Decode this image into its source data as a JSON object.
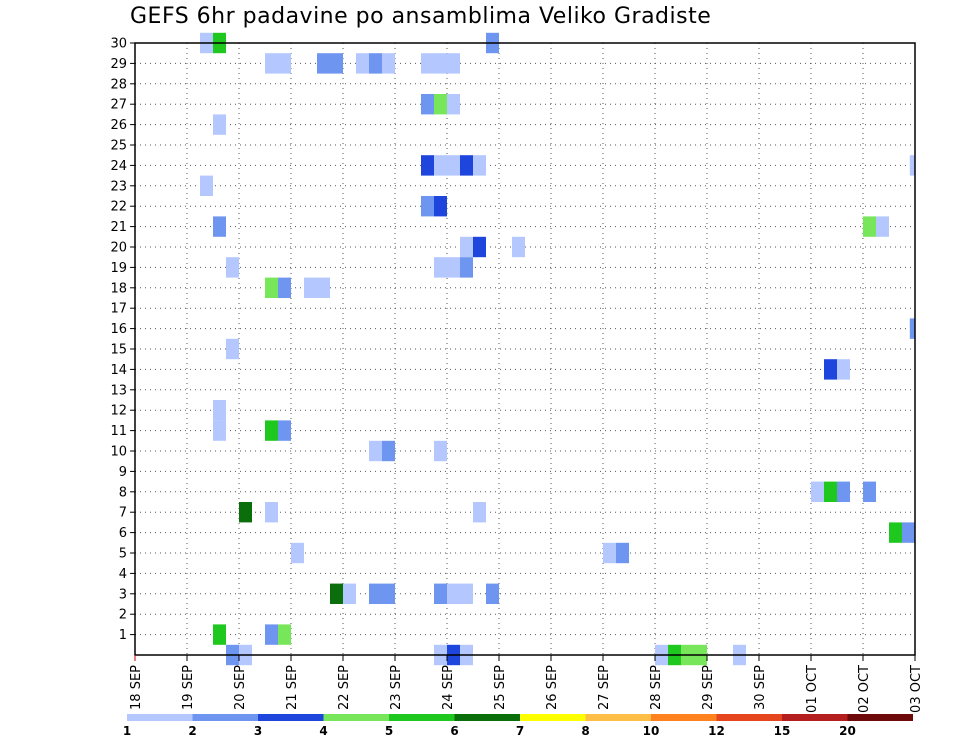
{
  "title": "GEFS 6hr padavine po ansamblima Veliko Gradiste",
  "chart_data": {
    "type": "heatmap",
    "title": "GEFS 6hr padavine po ansamblima Veliko Gradiste",
    "x_unit": "days (tick = 00Z)",
    "x_range": [
      0,
      15
    ],
    "x_tick_labels": [
      "18 SEP",
      "19 SEP",
      "20 SEP",
      "21 SEP",
      "22 SEP",
      "23 SEP",
      "24 SEP",
      "25 SEP",
      "26 SEP",
      "27 SEP",
      "28 SEP",
      "29 SEP",
      "30 SEP",
      "01 OCT",
      "02 OCT",
      "03 OCT"
    ],
    "y_range": [
      0,
      30
    ],
    "y_ticks": [
      1,
      2,
      3,
      4,
      5,
      6,
      7,
      8,
      9,
      10,
      11,
      12,
      13,
      14,
      15,
      16,
      17,
      18,
      19,
      20,
      21,
      22,
      23,
      24,
      25,
      26,
      27,
      28,
      29,
      30
    ],
    "grid": true,
    "legend_placement": "bottom",
    "colorbar": {
      "labels": [
        "1",
        "2",
        "3",
        "4",
        "5",
        "6",
        "7",
        "8",
        "10",
        "12",
        "15",
        "20"
      ],
      "colors": [
        "#b4c8ff",
        "#6e96f0",
        "#1e46dc",
        "#78e65a",
        "#1ec81e",
        "#0a6e0a",
        "#ffff00",
        "#ffbe46",
        "#ff821e",
        "#e6461e",
        "#b41e1e",
        "#6e0a0a"
      ]
    },
    "cell_width_days": 0.25,
    "cells": [
      [
        1.25,
        30,
        1
      ],
      [
        1.5,
        30,
        5
      ],
      [
        6.75,
        30,
        2
      ],
      [
        2.5,
        29,
        1
      ],
      [
        2.75,
        29,
        1
      ],
      [
        3.5,
        29,
        2
      ],
      [
        3.75,
        29,
        2
      ],
      [
        4.25,
        29,
        1
      ],
      [
        4.5,
        29,
        2
      ],
      [
        4.75,
        29,
        1
      ],
      [
        5.5,
        29,
        1
      ],
      [
        5.75,
        29,
        1
      ],
      [
        6.0,
        29,
        1
      ],
      [
        5.5,
        27,
        2
      ],
      [
        5.75,
        27,
        4
      ],
      [
        6.0,
        27,
        1
      ],
      [
        1.5,
        26,
        1
      ],
      [
        5.5,
        24,
        3
      ],
      [
        5.75,
        24,
        1
      ],
      [
        6.0,
        24,
        1
      ],
      [
        6.25,
        24,
        3
      ],
      [
        6.5,
        24,
        1
      ],
      [
        14.9,
        24,
        1
      ],
      [
        1.25,
        23,
        1
      ],
      [
        5.5,
        22,
        2
      ],
      [
        5.75,
        22,
        3
      ],
      [
        1.5,
        21,
        2
      ],
      [
        14.0,
        21,
        4
      ],
      [
        14.25,
        21,
        1
      ],
      [
        6.25,
        20,
        1
      ],
      [
        6.5,
        20,
        3
      ],
      [
        7.25,
        20,
        1
      ],
      [
        1.75,
        19,
        1
      ],
      [
        5.75,
        19,
        1
      ],
      [
        6.0,
        19,
        1
      ],
      [
        6.25,
        19,
        2
      ],
      [
        2.5,
        18,
        4
      ],
      [
        2.75,
        18,
        2
      ],
      [
        3.25,
        18,
        1
      ],
      [
        3.5,
        18,
        1
      ],
      [
        14.9,
        16,
        2
      ],
      [
        1.75,
        15,
        1
      ],
      [
        13.25,
        14,
        3
      ],
      [
        13.5,
        14,
        1
      ],
      [
        1.5,
        12,
        1
      ],
      [
        1.5,
        11,
        1
      ],
      [
        2.5,
        11,
        5
      ],
      [
        2.75,
        11,
        2
      ],
      [
        4.5,
        10,
        1
      ],
      [
        4.75,
        10,
        2
      ],
      [
        5.75,
        10,
        1
      ],
      [
        13.0,
        8,
        1
      ],
      [
        13.25,
        8,
        5
      ],
      [
        13.5,
        8,
        2
      ],
      [
        14.0,
        8,
        2
      ],
      [
        2.0,
        7,
        6
      ],
      [
        2.5,
        7,
        1
      ],
      [
        6.5,
        7,
        1
      ],
      [
        14.5,
        6,
        5
      ],
      [
        14.75,
        6,
        2
      ],
      [
        3.0,
        5,
        1
      ],
      [
        9.0,
        5,
        1
      ],
      [
        9.25,
        5,
        2
      ],
      [
        3.75,
        3,
        6
      ],
      [
        4.0,
        3,
        1
      ],
      [
        4.5,
        3,
        2
      ],
      [
        4.75,
        3,
        2
      ],
      [
        5.75,
        3,
        2
      ],
      [
        6.0,
        3,
        1
      ],
      [
        6.25,
        3,
        1
      ],
      [
        6.75,
        3,
        2
      ],
      [
        1.5,
        1,
        5
      ],
      [
        2.5,
        1,
        2
      ],
      [
        2.75,
        1,
        4
      ],
      [
        1.75,
        0,
        2
      ],
      [
        2.0,
        0,
        1
      ],
      [
        5.75,
        0,
        1
      ],
      [
        6.0,
        0,
        3
      ],
      [
        6.25,
        0,
        1
      ],
      [
        10.0,
        0,
        1
      ],
      [
        10.25,
        0,
        5
      ],
      [
        10.5,
        0,
        4
      ],
      [
        10.75,
        0,
        4
      ],
      [
        11.5,
        0,
        1
      ]
    ]
  }
}
